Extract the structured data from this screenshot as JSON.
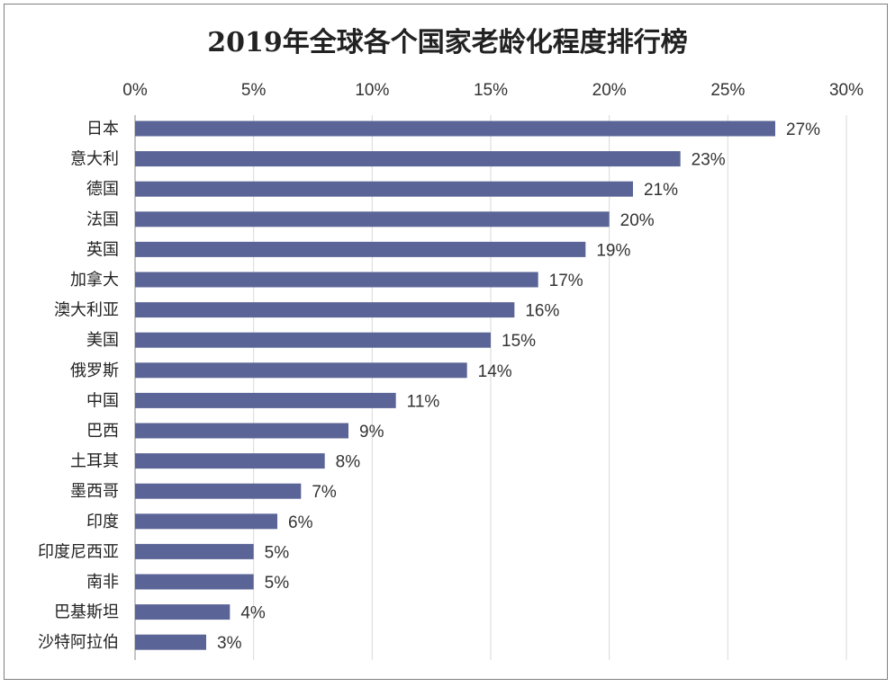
{
  "chart_data": {
    "type": "bar",
    "orientation": "horizontal",
    "title": "2019年全球各个国家老龄化程度排行榜",
    "categories": [
      "日本",
      "意大利",
      "德国",
      "法国",
      "英国",
      "加拿大",
      "澳大利亚",
      "美国",
      "俄罗斯",
      "中国",
      "巴西",
      "土耳其",
      "墨西哥",
      "印度",
      "印度尼西亚",
      "南非",
      "巴基斯坦",
      "沙特阿拉伯"
    ],
    "values": [
      27,
      23,
      21,
      20,
      19,
      17,
      16,
      15,
      14,
      11,
      9,
      8,
      7,
      6,
      5,
      5,
      4,
      3
    ],
    "data_labels": [
      "27%",
      "23%",
      "21%",
      "20%",
      "19%",
      "17%",
      "16%",
      "15%",
      "14%",
      "11%",
      "9%",
      "8%",
      "7%",
      "6%",
      "5%",
      "5%",
      "4%",
      "3%"
    ],
    "xlim": [
      0,
      30
    ],
    "xticks": [
      0,
      5,
      10,
      15,
      20,
      25,
      30
    ],
    "xtick_labels": [
      "0%",
      "5%",
      "10%",
      "15%",
      "20%",
      "25%",
      "30%"
    ],
    "x_axis_position": "top",
    "grid": true,
    "xlabel": "",
    "ylabel": "",
    "bar_color": "#5b6496"
  }
}
